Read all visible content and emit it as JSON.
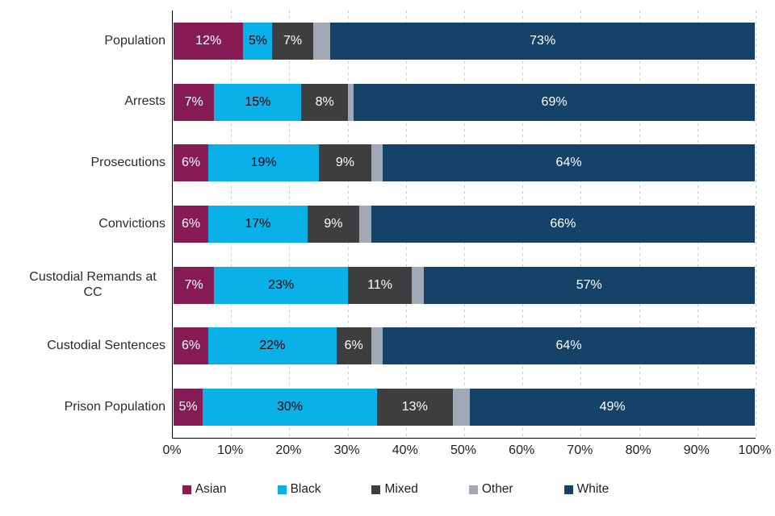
{
  "chart_data": {
    "type": "bar",
    "variant": "horizontal-stacked",
    "title": "",
    "categories": [
      "Population",
      "Arrests",
      "Prosecutions",
      "Convictions",
      "Custodial Remands at CC",
      "Custodial Sentences",
      "Prison Population"
    ],
    "series": [
      {
        "name": "Asian",
        "color": "#871c55",
        "label_color": "#ffffff",
        "show_value_labels": true,
        "values": [
          12,
          7,
          6,
          6,
          7,
          6,
          5
        ]
      },
      {
        "name": "Black",
        "color": "#09b1e8",
        "label_color": "#000000",
        "show_value_labels": true,
        "values": [
          5,
          15,
          19,
          17,
          23,
          22,
          30
        ]
      },
      {
        "name": "Mixed",
        "color": "#3e3e3e",
        "label_color": "#ffffff",
        "show_value_labels": true,
        "values": [
          7,
          8,
          9,
          9,
          11,
          6,
          13
        ]
      },
      {
        "name": "Other",
        "color": "#a1a8b6",
        "label_color": "#000000",
        "show_value_labels": false,
        "values": [
          3,
          1,
          2,
          2,
          2,
          2,
          3
        ]
      },
      {
        "name": "White",
        "color": "#154269",
        "label_color": "#ffffff",
        "show_value_labels": true,
        "values": [
          73,
          69,
          64,
          66,
          57,
          64,
          49
        ]
      }
    ],
    "value_suffix": "%",
    "x_ticks": [
      "0%",
      "10%",
      "20%",
      "30%",
      "40%",
      "50%",
      "60%",
      "70%",
      "80%",
      "90%",
      "100%"
    ],
    "xlim": [
      0,
      100
    ],
    "grid": true,
    "gridline_style": "dashed-vertical",
    "legend_position": "bottom",
    "xlabel": "",
    "ylabel": ""
  },
  "colors": {
    "background": "#ffffff",
    "axis_line": "#000000",
    "gridline": "#cdcdcd",
    "category_label_text": "#2b2b2b",
    "tick_label_text": "#1f1f1f"
  }
}
